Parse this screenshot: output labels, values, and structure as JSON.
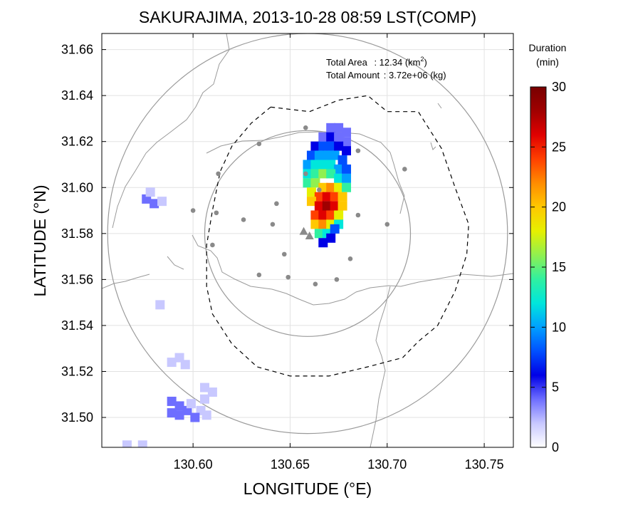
{
  "chart_data": {
    "type": "heatmap",
    "title": "SAKURAJIMA, 2013-10-28 08:59 LST(COMP)",
    "xlabel": "LONGITUDE (°E)",
    "ylabel": "LATITUDE (°N)",
    "xlim": [
      130.553,
      130.765
    ],
    "ylim": [
      31.487,
      31.667
    ],
    "xticks": [
      130.6,
      130.65,
      130.7,
      130.75
    ],
    "xtick_labels": [
      "130.60",
      "130.65",
      "130.70",
      "130.75"
    ],
    "yticks": [
      31.5,
      31.52,
      31.54,
      31.56,
      31.58,
      31.6,
      31.62,
      31.64,
      31.66
    ],
    "ytick_labels": [
      "31.50",
      "31.52",
      "31.54",
      "31.56",
      "31.58",
      "31.60",
      "31.62",
      "31.64",
      "31.66"
    ],
    "grid": true,
    "annotations": {
      "area_label": "Total Area",
      "area_value": ": 12.34 (km",
      "area_sup": "2",
      "area_close": ")",
      "amount_label": "Total Amount",
      "amount_value": ": 3.72e+06 (kg)"
    },
    "colorbar": {
      "title_line1": "Duration",
      "title_line2": "(min)",
      "min": 0,
      "max": 30,
      "ticks": [
        0,
        5,
        10,
        15,
        20,
        25,
        30
      ],
      "tick_labels": [
        "0",
        "5",
        "10",
        "15",
        "20",
        "25",
        "30"
      ],
      "colors": [
        "#ffffff",
        "#c8c8ff",
        "#6e6eff",
        "#0000e6",
        "#0050ff",
        "#00a0ff",
        "#00e6dc",
        "#30f0a0",
        "#90f050",
        "#e6f000",
        "#ffc800",
        "#ff8c00",
        "#ff4000",
        "#e00000",
        "#a00000",
        "#780000"
      ]
    },
    "vent_lat": 31.58,
    "vent_lon": 130.659,
    "range_circles_deg": [
      0.053,
      0.103
    ],
    "dashed_outline": [
      [
        130.64,
        31.635
      ],
      [
        130.66,
        31.633
      ],
      [
        130.675,
        31.638
      ],
      [
        130.69,
        31.64
      ],
      [
        130.7,
        31.633
      ],
      [
        130.716,
        31.633
      ],
      [
        130.728,
        31.617
      ],
      [
        130.735,
        31.6
      ],
      [
        130.742,
        31.584
      ],
      [
        130.741,
        31.571
      ],
      [
        130.735,
        31.555
      ],
      [
        130.726,
        31.54
      ],
      [
        130.716,
        31.533
      ],
      [
        130.708,
        31.526
      ],
      [
        130.69,
        31.522
      ],
      [
        130.67,
        31.518
      ],
      [
        130.65,
        31.518
      ],
      [
        130.633,
        31.522
      ],
      [
        130.62,
        31.532
      ],
      [
        130.61,
        31.545
      ],
      [
        130.607,
        31.557
      ],
      [
        130.607,
        31.575
      ],
      [
        130.61,
        31.59
      ],
      [
        130.614,
        31.607
      ],
      [
        130.62,
        31.618
      ],
      [
        130.63,
        31.628
      ],
      [
        130.64,
        31.635
      ]
    ],
    "stations": [
      [
        130.658,
        31.626
      ],
      [
        130.634,
        31.619
      ],
      [
        130.685,
        31.616
      ],
      [
        130.613,
        31.606
      ],
      [
        130.658,
        31.606
      ],
      [
        130.665,
        31.599
      ],
      [
        130.709,
        31.608
      ],
      [
        130.6,
        31.59
      ],
      [
        130.612,
        31.589
      ],
      [
        130.643,
        31.593
      ],
      [
        130.685,
        31.588
      ],
      [
        130.626,
        31.586
      ],
      [
        130.641,
        31.584
      ],
      [
        130.7,
        31.584
      ],
      [
        130.61,
        31.575
      ],
      [
        130.647,
        31.571
      ],
      [
        130.681,
        31.569
      ],
      [
        130.634,
        31.562
      ],
      [
        130.649,
        31.561
      ],
      [
        130.674,
        31.56
      ],
      [
        130.663,
        31.558
      ]
    ],
    "vent_markers": [
      [
        130.657,
        31.581
      ],
      [
        130.66,
        31.579
      ]
    ],
    "plume_cells": [
      [
        130.671,
        31.626,
        3
      ],
      [
        130.675,
        31.626,
        3
      ],
      [
        130.679,
        31.624,
        4
      ],
      [
        130.667,
        31.622,
        4
      ],
      [
        130.671,
        31.622,
        5
      ],
      [
        130.675,
        31.622,
        4
      ],
      [
        130.679,
        31.62,
        4
      ],
      [
        130.663,
        31.618,
        6
      ],
      [
        130.667,
        31.618,
        7
      ],
      [
        130.671,
        31.618,
        7
      ],
      [
        130.675,
        31.618,
        6
      ],
      [
        130.679,
        31.616,
        5
      ],
      [
        130.661,
        31.614,
        8
      ],
      [
        130.665,
        31.614,
        9
      ],
      [
        130.669,
        31.614,
        10
      ],
      [
        130.673,
        31.614,
        9
      ],
      [
        130.677,
        31.612,
        7
      ],
      [
        130.659,
        31.61,
        9
      ],
      [
        130.663,
        31.61,
        11
      ],
      [
        130.667,
        31.61,
        12
      ],
      [
        130.671,
        31.61,
        12
      ],
      [
        130.675,
        31.608,
        10
      ],
      [
        130.679,
        31.608,
        8
      ],
      [
        130.659,
        31.606,
        11
      ],
      [
        130.663,
        31.606,
        13
      ],
      [
        130.667,
        31.606,
        15
      ],
      [
        130.671,
        31.606,
        14
      ],
      [
        130.675,
        31.604,
        12
      ],
      [
        130.679,
        31.604,
        10
      ],
      [
        130.659,
        31.602,
        13
      ],
      [
        130.663,
        31.602,
        16
      ],
      [
        130.667,
        31.6,
        20
      ],
      [
        130.671,
        31.6,
        22
      ],
      [
        130.675,
        31.6,
        18
      ],
      [
        130.679,
        31.6,
        14
      ],
      [
        130.661,
        31.598,
        18
      ],
      [
        130.665,
        31.596,
        23
      ],
      [
        130.669,
        31.596,
        26
      ],
      [
        130.673,
        31.596,
        24
      ],
      [
        130.677,
        31.596,
        19
      ],
      [
        130.661,
        31.594,
        20
      ],
      [
        130.665,
        31.592,
        25
      ],
      [
        130.669,
        31.592,
        27
      ],
      [
        130.673,
        31.592,
        25
      ],
      [
        130.677,
        31.592,
        20
      ],
      [
        130.663,
        31.588,
        23
      ],
      [
        130.667,
        31.588,
        26
      ],
      [
        130.671,
        31.588,
        24
      ],
      [
        130.675,
        31.588,
        18
      ],
      [
        130.663,
        31.584,
        20
      ],
      [
        130.667,
        31.584,
        22
      ],
      [
        130.671,
        31.584,
        17
      ],
      [
        130.675,
        31.584,
        12
      ],
      [
        130.665,
        31.58,
        14
      ],
      [
        130.669,
        31.58,
        11
      ],
      [
        130.673,
        31.582,
        8
      ],
      [
        130.667,
        31.576,
        6
      ],
      [
        130.671,
        31.578,
        5
      ]
    ],
    "minor_cells": [
      [
        130.576,
        31.595,
        3
      ],
      [
        130.58,
        31.593,
        3
      ],
      [
        130.578,
        31.598,
        2
      ],
      [
        130.584,
        31.594,
        2
      ],
      [
        130.583,
        31.549,
        2
      ],
      [
        130.589,
        31.524,
        2
      ],
      [
        130.593,
        31.526,
        2
      ],
      [
        130.596,
        31.523,
        2
      ],
      [
        130.606,
        31.513,
        2
      ],
      [
        130.61,
        31.511,
        2
      ],
      [
        130.606,
        31.508,
        2
      ],
      [
        130.589,
        31.507,
        4
      ],
      [
        130.593,
        31.505,
        4
      ],
      [
        130.597,
        31.503,
        3
      ],
      [
        130.589,
        31.502,
        4
      ],
      [
        130.593,
        31.501,
        3
      ],
      [
        130.599,
        31.506,
        2
      ],
      [
        130.604,
        31.503,
        2
      ],
      [
        130.601,
        31.5,
        3
      ],
      [
        130.607,
        31.501,
        2
      ],
      [
        130.566,
        31.488,
        2
      ],
      [
        130.574,
        31.488,
        2
      ]
    ]
  }
}
